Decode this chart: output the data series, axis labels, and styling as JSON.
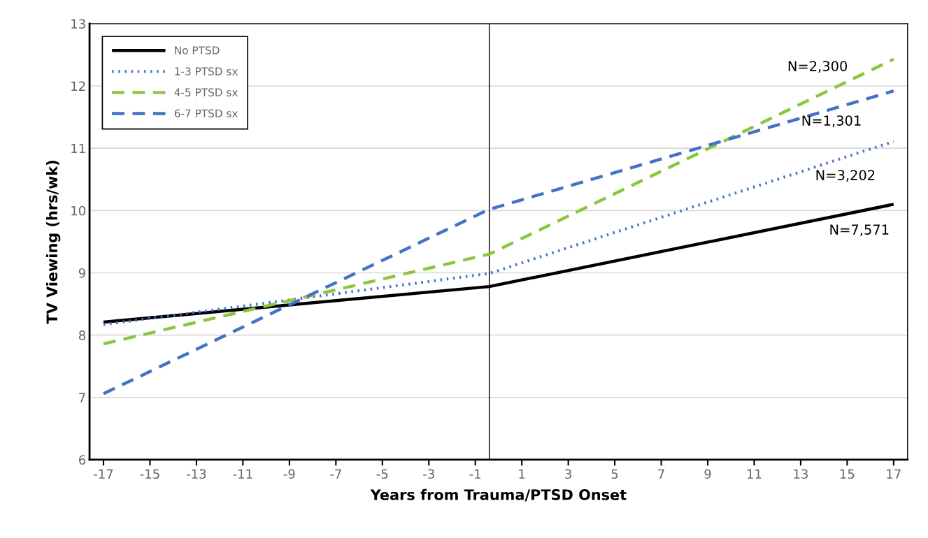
{
  "chart_data": {
    "type": "line",
    "xlabel": "Years from Trauma/PTSD Onset",
    "ylabel": "TV Viewing (hrs/wk)",
    "x": [
      -17,
      -0.4,
      17
    ],
    "series": [
      {
        "name": "No PTSD",
        "color": "#000000",
        "line_style": "solid",
        "values": [
          8.21,
          8.78,
          10.1
        ]
      },
      {
        "name": "1-3 PTSD sx",
        "color": "#4472c4",
        "line_style": "dotted",
        "values": [
          8.17,
          8.99,
          11.11
        ]
      },
      {
        "name": "4-5 PTSD sx",
        "color": "#8cc63f",
        "line_style": "dashed",
        "values": [
          7.86,
          9.3,
          12.43
        ]
      },
      {
        "name": "6-7 PTSD sx",
        "color": "#4472c4",
        "line_style": "dashed",
        "values": [
          7.06,
          10.02,
          11.92
        ]
      }
    ],
    "xlim": [
      -17.6,
      17.6
    ],
    "xticks": [
      -17,
      -15,
      -13,
      -11,
      -9,
      -7,
      -5,
      -3,
      -1,
      1,
      3,
      5,
      7,
      9,
      11,
      13,
      15,
      17
    ],
    "ylim": [
      6,
      13
    ],
    "yticks": [
      6,
      7,
      8,
      9,
      10,
      11,
      12,
      13
    ],
    "ref_lines": [
      {
        "axis": "x",
        "value": -0.4,
        "color": "#000000"
      }
    ],
    "annotations": [
      "N=2,300",
      "N=1,301",
      "N=3,202",
      "N=7,571"
    ],
    "grid": "y",
    "legend": "top left",
    "marker": "none"
  }
}
